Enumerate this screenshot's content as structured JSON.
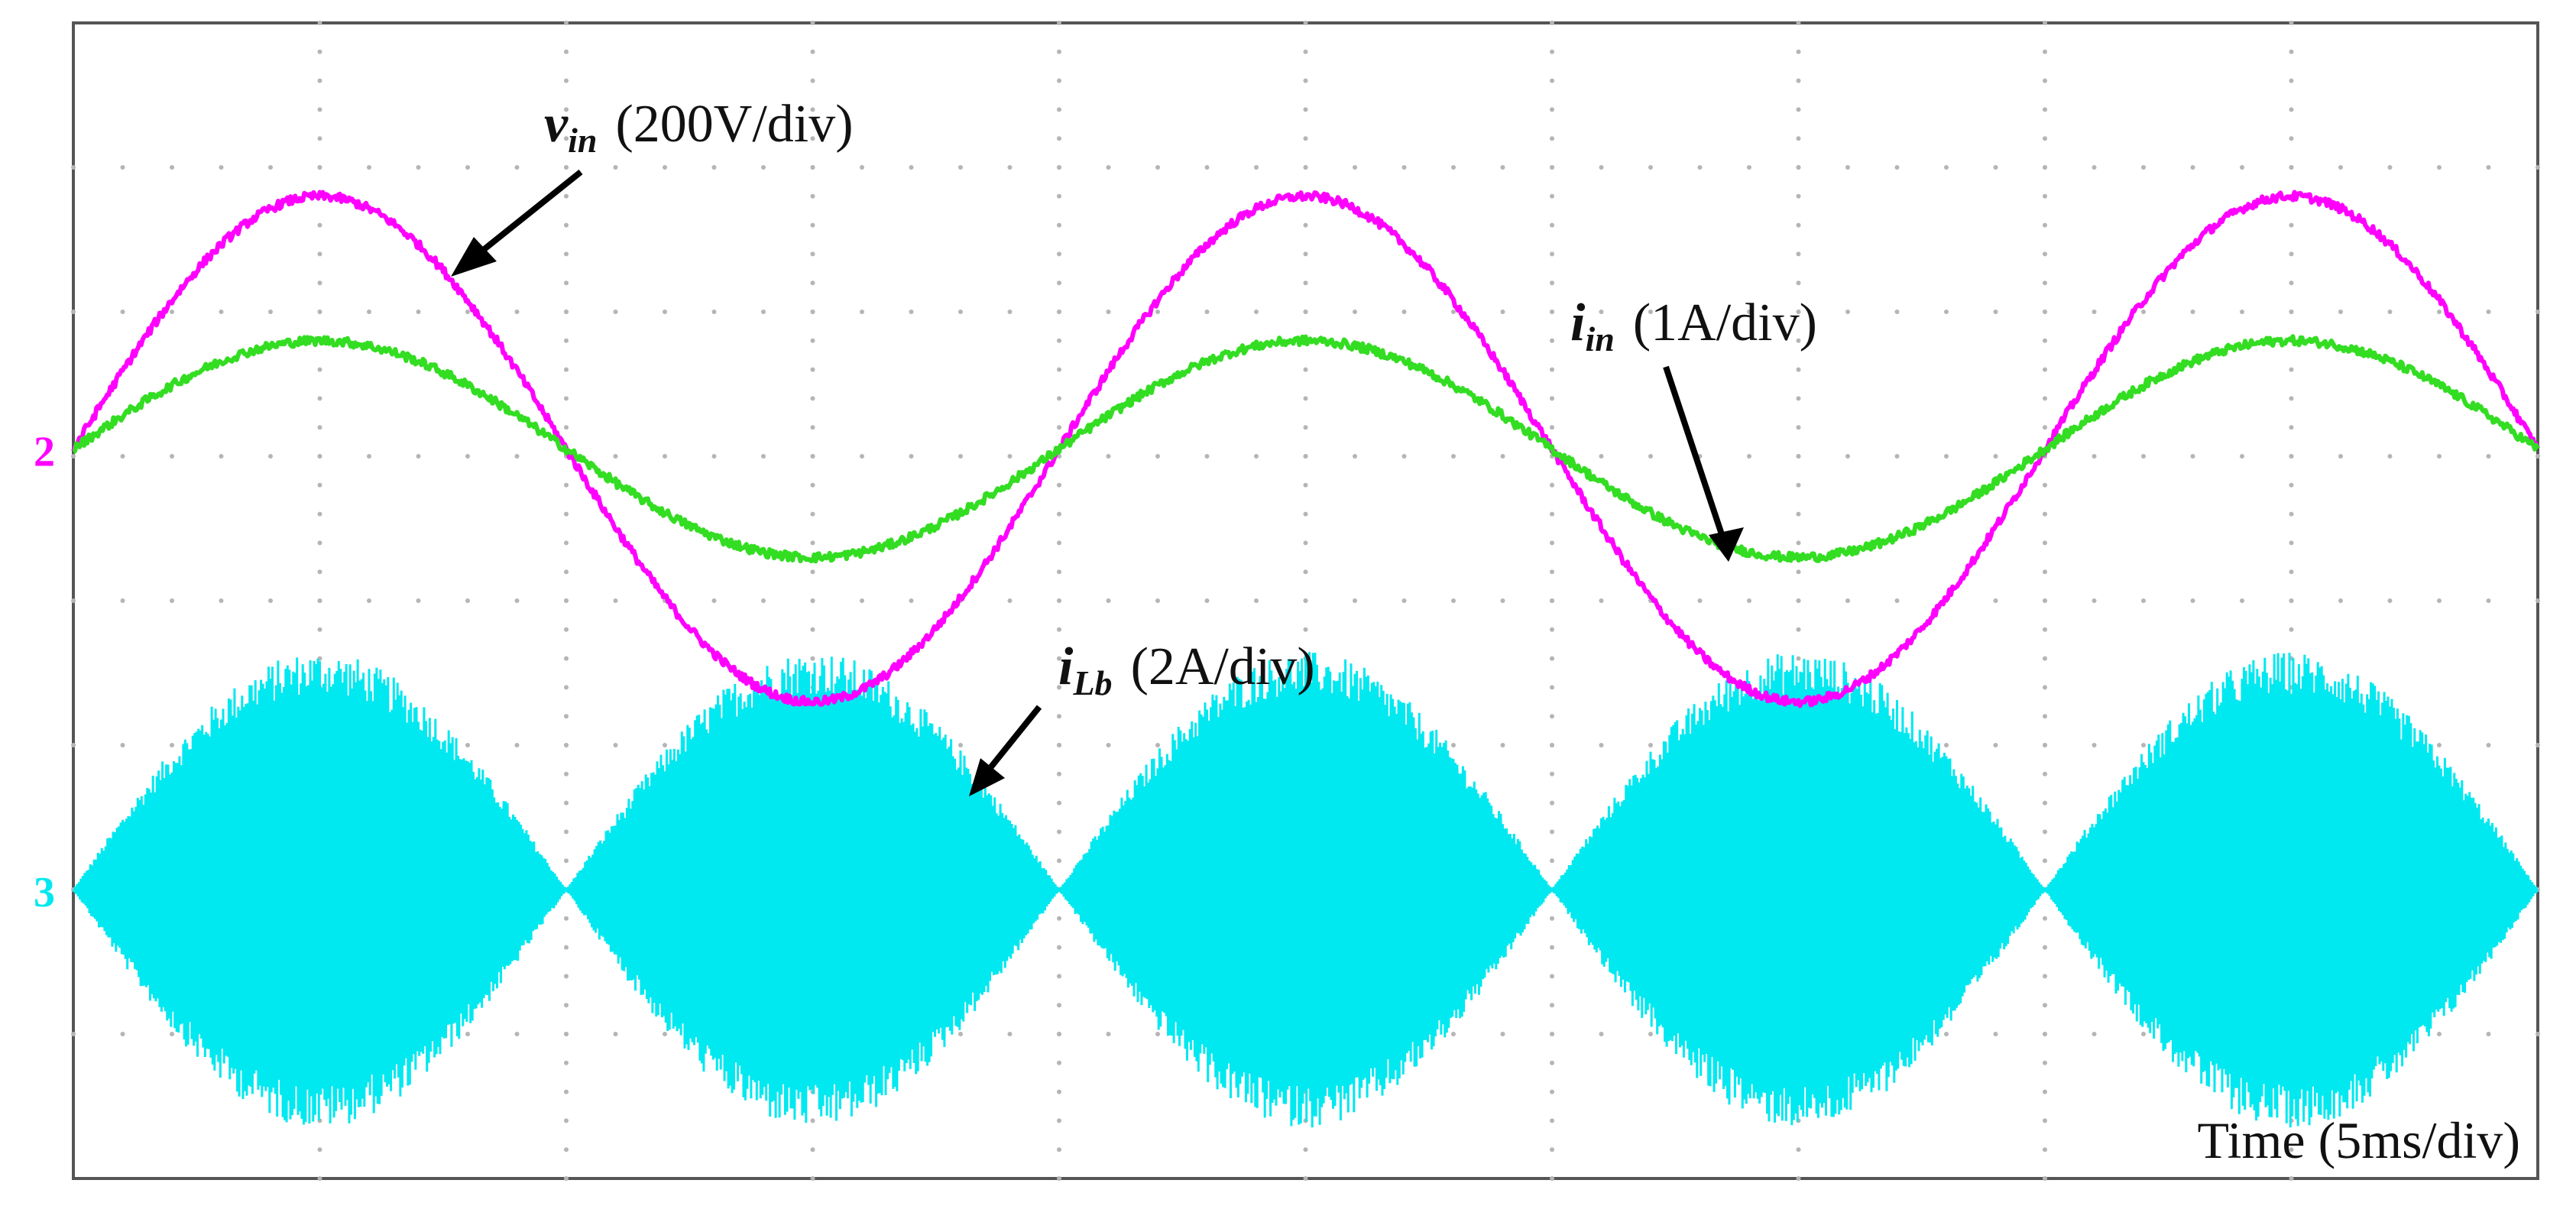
{
  "chart_data": {
    "type": "line",
    "xlabel": "Time (5ms/div)",
    "x_divisions": 10,
    "y_divisions": 8,
    "grid": true,
    "series": [
      {
        "name_main": "v",
        "name_sub": "in",
        "scale": "(200V/div)",
        "color": "#ff00ff",
        "channel_marker": "2",
        "shape": "sine",
        "period_div": 4.0,
        "phase_div": 0.0,
        "offset_div": 1.05,
        "amplitude_div": 1.75,
        "noise_div": 0.03
      },
      {
        "name_main": "i",
        "name_sub": "in",
        "scale": "(1A/div)",
        "color": "#33dd22",
        "shape": "sine",
        "period_div": 4.0,
        "phase_div": 0.0,
        "offset_div": 1.05,
        "amplitude_div": 0.75,
        "noise_div": 0.03
      },
      {
        "name_main": "i",
        "name_sub": "Lb",
        "scale": "(2A/div)",
        "color": "#00e8f0",
        "channel_marker": "3",
        "shape": "rectified_envelope",
        "period_div": 2.0,
        "phase_div": 0.0,
        "offset_div": -2.0,
        "amplitude_div": 1.65
      }
    ]
  }
}
